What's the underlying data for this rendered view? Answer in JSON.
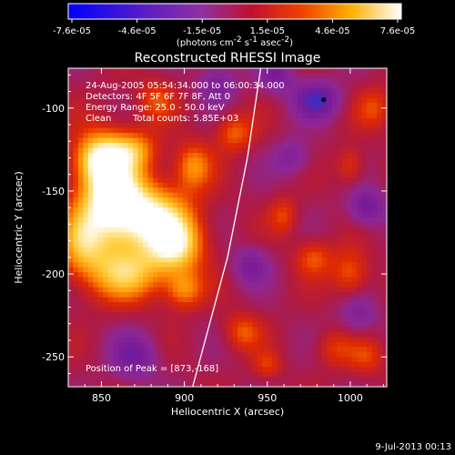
{
  "chart_data": {
    "type": "heatmap",
    "title": "Reconstructed RHESSI Image",
    "xlabel": "Heliocentric X (arcsec)",
    "ylabel": "Heliocentric Y (arcsec)",
    "xlim": [
      830,
      1022
    ],
    "ylim": [
      -268,
      -76
    ],
    "xticks": [
      850,
      900,
      950,
      1000
    ],
    "yticks": [
      -100,
      -150,
      -200,
      -250
    ],
    "colorbar": {
      "ticks": [
        "-7.6e-05",
        "-4.6e-05",
        "-1.5e-05",
        "1.5e-05",
        "4.6e-05",
        "7.6e-05"
      ],
      "unit_text": "(photons cm",
      "unit_exp1": "-2",
      "unit_mid": " s",
      "unit_exp2": "-1",
      "unit_mid2": " asec",
      "unit_exp3": "-2",
      "unit_close": ")",
      "range": [
        -7.6e-05,
        7.6e-05
      ]
    },
    "annotations": {
      "time_range": "24-Aug-2005 05:54:34.000 to 06:00:34.000",
      "detectors": "Detectors: 4F 5F 6F 7F 8F, Att 0",
      "energy": "Energy Range: 25.0 - 50.0 keV",
      "clean_label": "Clean",
      "total_counts": "Total counts: 5.85E+03",
      "peak": "Position of Peak = [873,-168]"
    },
    "peak_position": [
      873,
      -168
    ],
    "marker_position": [
      984,
      -95
    ],
    "limb_curve": [
      [
        946,
        -76
      ],
      [
        938,
        -130
      ],
      [
        926,
        -190
      ],
      [
        905,
        -268
      ]
    ],
    "sources": [
      {
        "x": 855,
        "y": -150,
        "amp": 1.0,
        "sx": 14,
        "sy": 22
      },
      {
        "x": 878,
        "y": -165,
        "amp": 0.9,
        "sx": 18,
        "sy": 14
      },
      {
        "x": 895,
        "y": -183,
        "amp": 0.8,
        "sx": 12,
        "sy": 12
      },
      {
        "x": 865,
        "y": -200,
        "amp": 0.7,
        "sx": 18,
        "sy": 12
      },
      {
        "x": 838,
        "y": -182,
        "amp": 0.55,
        "sx": 10,
        "sy": 14
      },
      {
        "x": 848,
        "y": -130,
        "amp": 0.6,
        "sx": 10,
        "sy": 10
      },
      {
        "x": 905,
        "y": -135,
        "amp": 0.55,
        "sx": 8,
        "sy": 10
      },
      {
        "x": 870,
        "y": -125,
        "amp": 0.45,
        "sx": 10,
        "sy": 8
      },
      {
        "x": 883,
        "y": -95,
        "amp": 0.35,
        "sx": 8,
        "sy": 9
      },
      {
        "x": 930,
        "y": -115,
        "amp": 0.45,
        "sx": 8,
        "sy": 8
      },
      {
        "x": 1000,
        "y": -135,
        "amp": 0.35,
        "sx": 6,
        "sy": 8
      },
      {
        "x": 978,
        "y": -190,
        "amp": 0.4,
        "sx": 8,
        "sy": 8
      },
      {
        "x": 1000,
        "y": -200,
        "amp": 0.45,
        "sx": 8,
        "sy": 10
      },
      {
        "x": 1015,
        "y": -100,
        "amp": 0.35,
        "sx": 8,
        "sy": 9
      },
      {
        "x": 960,
        "y": -165,
        "amp": 0.35,
        "sx": 6,
        "sy": 8
      },
      {
        "x": 900,
        "y": -210,
        "amp": 0.5,
        "sx": 8,
        "sy": 8
      },
      {
        "x": 935,
        "y": -235,
        "amp": 0.4,
        "sx": 8,
        "sy": 8
      },
      {
        "x": 990,
        "y": -245,
        "amp": 0.3,
        "sx": 8,
        "sy": 8
      },
      {
        "x": 1010,
        "y": -250,
        "amp": 0.3,
        "sx": 8,
        "sy": 8
      },
      {
        "x": 950,
        "y": -255,
        "amp": 0.3,
        "sx": 6,
        "sy": 6
      },
      {
        "x": 980,
        "y": -95,
        "amp": -0.6,
        "sx": 10,
        "sy": 8
      },
      {
        "x": 1010,
        "y": -160,
        "amp": -0.5,
        "sx": 8,
        "sy": 8
      },
      {
        "x": 940,
        "y": -195,
        "amp": -0.4,
        "sx": 8,
        "sy": 8
      },
      {
        "x": 870,
        "y": -250,
        "amp": -0.45,
        "sx": 10,
        "sy": 10
      },
      {
        "x": 920,
        "y": -85,
        "amp": -0.4,
        "sx": 8,
        "sy": 8
      },
      {
        "x": 965,
        "y": -130,
        "amp": -0.35,
        "sx": 8,
        "sy": 8
      },
      {
        "x": 1005,
        "y": -225,
        "amp": -0.35,
        "sx": 8,
        "sy": 8
      },
      {
        "x": 955,
        "y": -80,
        "amp": -0.4,
        "sx": 8,
        "sy": 8
      }
    ],
    "colormap": [
      "#0000ff",
      "#3c2cc8",
      "#7a1a96",
      "#8c2896",
      "#b01a40",
      "#e02a00",
      "#ff8a00",
      "#ffd040",
      "#ffffff"
    ]
  },
  "footer": {
    "date": "9-Jul-2013 00:13"
  }
}
